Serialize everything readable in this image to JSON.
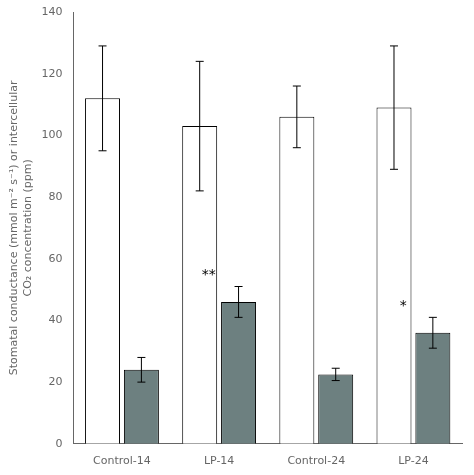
{
  "chart_data": {
    "type": "bar",
    "categories": [
      "Control-14",
      "LP-14",
      "Control-24",
      "LP-24"
    ],
    "series": [
      {
        "color": "#ffffff",
        "values": [
          112,
          103,
          106,
          109
        ],
        "errors": [
          17,
          21,
          10,
          20
        ]
      },
      {
        "color": "#6d8080",
        "values": [
          24,
          46,
          22.5,
          36
        ],
        "errors": [
          4,
          5,
          2,
          5
        ]
      }
    ],
    "ylabel": [
      "Stomatal conductance (mmol m⁻² s⁻¹) or intercellular",
      "CO₂ concentration (ppm)"
    ],
    "ylim": [
      0,
      140
    ],
    "yticks": [
      0,
      20,
      40,
      60,
      80,
      100,
      120,
      140
    ],
    "grid": false,
    "annotations": [
      {
        "text": "**",
        "category": "LP-14",
        "series": 1
      },
      {
        "text": "*",
        "category": "LP-24",
        "series": 1
      }
    ]
  }
}
